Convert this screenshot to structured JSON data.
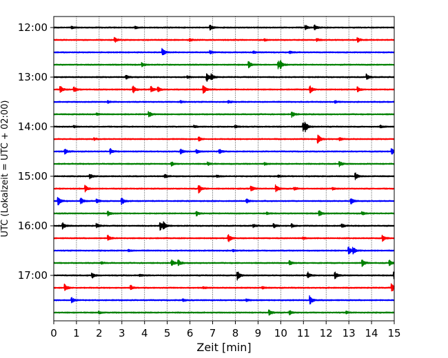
{
  "chart_data": {
    "type": "line",
    "title": "",
    "xlabel": "Zeit  [min]",
    "ylabel": "UTC (Lokalzeit = UTC + 02:00)",
    "xlim": [
      0,
      15
    ],
    "x_ticks": [
      "0",
      "1",
      "2",
      "3",
      "4",
      "5",
      "6",
      "7",
      "8",
      "9",
      "10",
      "11",
      "12",
      "13",
      "14",
      "15"
    ],
    "x_grid": "dotted",
    "y_tick_labels": [
      "12:00",
      "13:00",
      "14:00",
      "15:00",
      "16:00",
      "17:00"
    ],
    "trace_interval_minutes": 15,
    "first_trace": "12:00",
    "colors": [
      "#000000",
      "#ff0000",
      "#0000ff",
      "#008000"
    ],
    "series": [
      {
        "start": "12:00",
        "color": "#000000",
        "events": [
          [
            6.9,
            0.5
          ],
          [
            11.1,
            0.45
          ],
          [
            11.5,
            0.45
          ],
          [
            0.8,
            0.2
          ],
          [
            3.6,
            0.2
          ]
        ]
      },
      {
        "start": "12:15",
        "color": "#ff0000",
        "events": [
          [
            2.7,
            0.45
          ],
          [
            6.0,
            0.25
          ],
          [
            9.3,
            0.2
          ],
          [
            11.6,
            0.25
          ],
          [
            13.4,
            0.4
          ]
        ]
      },
      {
        "start": "12:30",
        "color": "#0000ff",
        "events": [
          [
            4.8,
            0.7
          ],
          [
            6.9,
            0.3
          ],
          [
            8.8,
            0.2
          ],
          [
            10.4,
            0.2
          ]
        ]
      },
      {
        "start": "12:45",
        "color": "#008000",
        "events": [
          [
            3.9,
            0.35
          ],
          [
            8.6,
            0.6
          ],
          [
            9.9,
            0.75
          ],
          [
            10.0,
            0.55
          ]
        ]
      },
      {
        "start": "13:00",
        "color": "#000000",
        "events": [
          [
            3.2,
            0.35
          ],
          [
            6.75,
            0.8
          ],
          [
            6.95,
            0.5
          ],
          [
            13.8,
            0.55
          ],
          [
            5.9,
            0.2
          ]
        ]
      },
      {
        "start": "13:15",
        "color": "#ff0000",
        "events": [
          [
            0.3,
            0.65
          ],
          [
            0.9,
            0.55
          ],
          [
            3.5,
            0.75
          ],
          [
            4.3,
            0.6
          ],
          [
            4.6,
            0.5
          ],
          [
            6.6,
            0.85
          ],
          [
            11.3,
            0.7
          ],
          [
            13.4,
            0.5
          ]
        ]
      },
      {
        "start": "13:30",
        "color": "#0000ff",
        "events": [
          [
            2.4,
            0.2
          ],
          [
            5.6,
            0.2
          ],
          [
            7.7,
            0.2
          ],
          [
            12.4,
            0.2
          ]
        ]
      },
      {
        "start": "13:45",
        "color": "#008000",
        "events": [
          [
            4.2,
            0.55
          ],
          [
            10.5,
            0.55
          ],
          [
            1.9,
            0.2
          ]
        ]
      },
      {
        "start": "14:00",
        "color": "#000000",
        "events": [
          [
            11.0,
            0.95
          ],
          [
            11.1,
            0.65
          ],
          [
            8.0,
            0.3
          ],
          [
            14.4,
            0.25
          ],
          [
            0.9,
            0.2
          ],
          [
            6.2,
            0.2
          ]
        ]
      },
      {
        "start": "14:15",
        "color": "#ff0000",
        "events": [
          [
            11.65,
            1.0
          ],
          [
            6.4,
            0.4
          ],
          [
            12.6,
            0.3
          ],
          [
            1.8,
            0.2
          ]
        ]
      },
      {
        "start": "14:30",
        "color": "#0000ff",
        "events": [
          [
            0.5,
            0.5
          ],
          [
            2.5,
            0.5
          ],
          [
            5.6,
            0.45
          ],
          [
            6.3,
            0.45
          ],
          [
            7.3,
            0.45
          ],
          [
            14.9,
            0.55
          ]
        ]
      },
      {
        "start": "14:45",
        "color": "#008000",
        "events": [
          [
            5.2,
            0.4
          ],
          [
            6.8,
            0.3
          ],
          [
            12.6,
            0.5
          ],
          [
            9.3,
            0.2
          ]
        ]
      },
      {
        "start": "15:00",
        "color": "#000000",
        "events": [
          [
            1.6,
            0.5
          ],
          [
            4.9,
            0.3
          ],
          [
            13.3,
            0.6
          ],
          [
            7.2,
            0.2
          ],
          [
            9.9,
            0.2
          ]
        ]
      },
      {
        "start": "15:15",
        "color": "#ff0000",
        "events": [
          [
            1.4,
            0.6
          ],
          [
            6.4,
            0.95
          ],
          [
            8.7,
            0.55
          ],
          [
            9.8,
            0.7
          ],
          [
            10.6,
            0.3
          ],
          [
            12.3,
            0.2
          ]
        ]
      },
      {
        "start": "15:30",
        "color": "#0000ff",
        "events": [
          [
            0.2,
            0.8
          ],
          [
            1.2,
            0.6
          ],
          [
            1.9,
            0.45
          ],
          [
            3.0,
            0.75
          ],
          [
            8.5,
            0.4
          ],
          [
            13.1,
            0.6
          ]
        ]
      },
      {
        "start": "15:45",
        "color": "#008000",
        "events": [
          [
            2.4,
            0.4
          ],
          [
            6.3,
            0.45
          ],
          [
            11.7,
            0.6
          ],
          [
            13.6,
            0.3
          ],
          [
            9.4,
            0.2
          ]
        ]
      },
      {
        "start": "16:00",
        "color": "#000000",
        "events": [
          [
            0.4,
            0.6
          ],
          [
            1.9,
            0.4
          ],
          [
            4.7,
            0.85
          ],
          [
            4.85,
            0.6
          ],
          [
            8.8,
            0.3
          ],
          [
            9.7,
            0.4
          ],
          [
            10.5,
            0.35
          ],
          [
            12.7,
            0.4
          ]
        ]
      },
      {
        "start": "16:15",
        "color": "#ff0000",
        "events": [
          [
            2.4,
            0.6
          ],
          [
            7.7,
            0.9
          ],
          [
            14.5,
            0.6
          ],
          [
            11.0,
            0.2
          ]
        ]
      },
      {
        "start": "16:30",
        "color": "#0000ff",
        "events": [
          [
            13.0,
            0.7
          ],
          [
            13.2,
            0.55
          ],
          [
            3.3,
            0.2
          ],
          [
            7.9,
            0.2
          ]
        ]
      },
      {
        "start": "16:45",
        "color": "#008000",
        "events": [
          [
            5.2,
            0.55
          ],
          [
            5.5,
            0.5
          ],
          [
            10.4,
            0.45
          ],
          [
            13.6,
            0.65
          ],
          [
            14.8,
            0.55
          ],
          [
            2.1,
            0.2
          ]
        ]
      },
      {
        "start": "17:00",
        "color": "#000000",
        "events": [
          [
            1.7,
            0.5
          ],
          [
            8.1,
            0.95
          ],
          [
            11.2,
            0.6
          ],
          [
            12.4,
            0.6
          ],
          [
            15.0,
            0.7
          ],
          [
            3.8,
            0.2
          ]
        ]
      },
      {
        "start": "17:15",
        "color": "#ff0000",
        "events": [
          [
            0.5,
            0.7
          ],
          [
            3.4,
            0.45
          ],
          [
            14.9,
            0.75
          ],
          [
            6.6,
            0.2
          ],
          [
            9.2,
            0.2
          ]
        ]
      },
      {
        "start": "17:30",
        "color": "#0000ff",
        "events": [
          [
            0.8,
            0.5
          ],
          [
            11.3,
            0.85
          ],
          [
            5.7,
            0.2
          ],
          [
            8.5,
            0.2
          ]
        ]
      },
      {
        "start": "17:45",
        "color": "#008000",
        "events": [
          [
            9.5,
            0.55
          ],
          [
            10.4,
            0.4
          ],
          [
            2.0,
            0.2
          ],
          [
            12.9,
            0.2
          ]
        ]
      }
    ]
  }
}
